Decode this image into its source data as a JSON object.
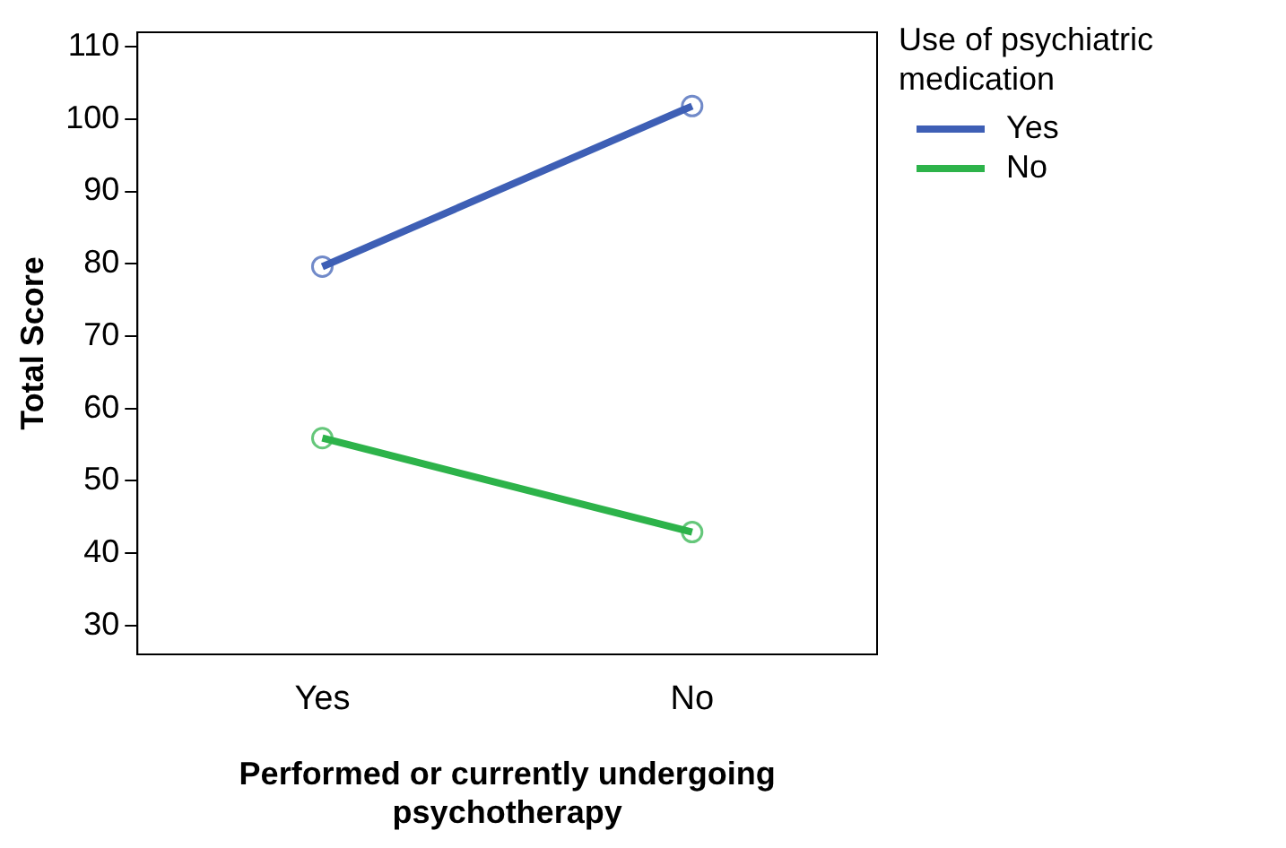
{
  "chart_data": {
    "type": "line",
    "xlabel": "Performed or currently undergoing psychotherapy",
    "ylabel": "Total Score",
    "legend_title": "Use of psychiatric medication",
    "categories": [
      "Yes",
      "No"
    ],
    "series": [
      {
        "name": "Yes",
        "color": "#3e5fb5",
        "values": [
          79.6,
          101.8
        ]
      },
      {
        "name": "No",
        "color": "#2db34a",
        "values": [
          55.9,
          42.9
        ]
      }
    ],
    "ylim": [
      26,
      112
    ],
    "yticks": [
      30,
      40,
      50,
      60,
      70,
      80,
      90,
      100,
      110
    ],
    "marker": "circle",
    "grid": false,
    "legend": "right"
  }
}
